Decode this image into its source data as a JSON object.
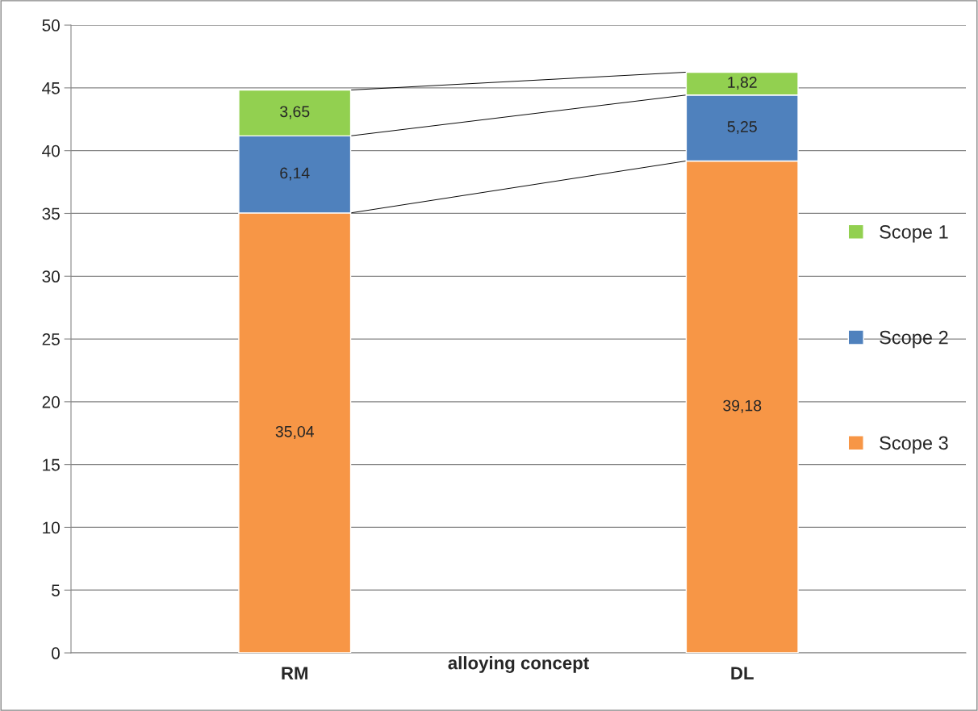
{
  "chart_data": {
    "type": "bar",
    "stacked": true,
    "xlabel": "alloying concept",
    "categories": [
      "RM",
      "DL"
    ],
    "series": [
      {
        "name": "Scope 3",
        "color": "#f79646",
        "values": [
          35.04,
          39.18
        ],
        "value_labels": [
          "35,04",
          "39,18"
        ]
      },
      {
        "name": "Scope 2",
        "color": "#4f81bd",
        "values": [
          6.14,
          5.25
        ],
        "value_labels": [
          "6,14",
          "5,25"
        ]
      },
      {
        "name": "Scope 1",
        "color": "#92d050",
        "values": [
          3.65,
          1.82
        ],
        "value_labels": [
          "3,65",
          "1,82"
        ]
      }
    ],
    "ylim": [
      0,
      50
    ],
    "yticks": [
      0,
      5,
      10,
      15,
      20,
      25,
      30,
      35,
      40,
      45,
      50
    ],
    "grid": "y",
    "legend": "right"
  }
}
